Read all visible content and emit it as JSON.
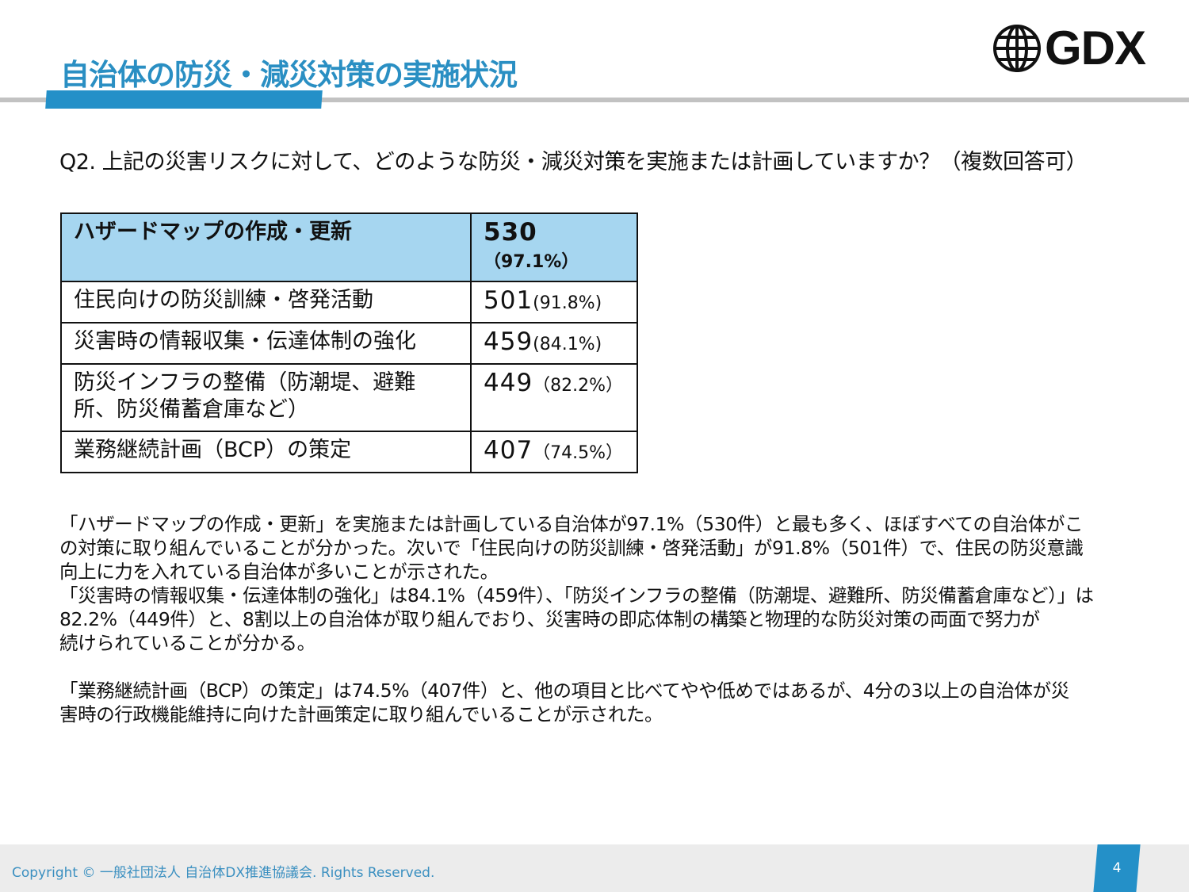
{
  "header": {
    "title": "自治体の防災・減災対策の実施状況",
    "logo_text": "GDX",
    "accent": "#2490c8"
  },
  "question": "Q2. 上記の災害リスクに対して、どのような防災・減災対策を実施または計画していますか？（複数回答可）",
  "table": {
    "rows": [
      {
        "label": "ハザードマップの作成・更新",
        "count": "530",
        "pct": "（97.1%）"
      },
      {
        "label": "住民向けの防災訓練・啓発活動",
        "count": "501",
        "pct": "(91.8%)"
      },
      {
        "label": "災害時の情報収集・伝達体制の強化",
        "count": "459",
        "pct": "(84.1%)"
      },
      {
        "label": "防災インフラの整備（防潮堤、避難所、防災備蓄倉庫など）",
        "count": "449",
        "pct": "（82.2%）"
      },
      {
        "label": "業務継続計画（BCP）の策定",
        "count": "407",
        "pct": "（74.5%）"
      }
    ]
  },
  "summary": {
    "lines": [
      "「ハザードマップの作成・更新」を実施または計画している自治体が97.1%（530件）と最も多く、ほぼすべての自治体がこ",
      "の対策に取り組んでいることが分かった。次いで「住民向けの防災訓練・啓発活動」が91.8%（501件）で、住民の防災意識",
      "向上に力を入れている自治体が多いことが示された。",
      "「災害時の情報収集・伝達体制の強化」は84.1%（459件）、「防災インフラの整備（防潮堤、避難所、防災備蓄倉庫など）」は",
      "82.2%（449件）と、8割以上の自治体が取り組んでおり、災害時の即応体制の構築と物理的な防災対策の両面で努力が",
      "続けられていることが分かる。",
      "",
      "「業務継続計画（BCP）の策定」は74.5%（407件）と、他の項目と比べてやや低めではあるが、4分の3以上の自治体が災",
      "害時の行政機能維持に向けた計画策定に取り組んでいることが示された。"
    ]
  },
  "footer": {
    "copyright": "Copyright © 一般社団法人 自治体DX推進協議会. Rights Reserved.",
    "page": "4"
  }
}
